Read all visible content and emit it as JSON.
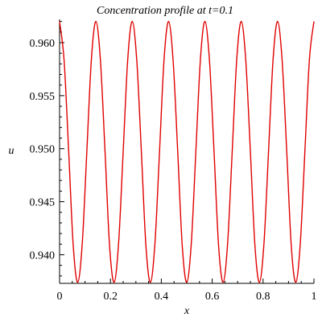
{
  "chart_data": {
    "type": "line",
    "title": "Concentration profile at t=0.1",
    "xlabel": "x",
    "ylabel": "u",
    "xlim": [
      0,
      1
    ],
    "ylim": [
      0.9373,
      0.9622
    ],
    "xticks": [
      "0",
      "0.2",
      "0.4",
      "0.6",
      "0.8",
      "1"
    ],
    "yticks": [
      "0.940",
      "0.945",
      "0.950",
      "0.955",
      "0.960"
    ],
    "grid": false,
    "legend": "none",
    "series": [
      {
        "color": "#e00000",
        "points": [
          [
            0.0,
            0.962
          ],
          [
            0.0179,
            0.9583
          ],
          [
            0.0357,
            0.9498
          ],
          [
            0.0536,
            0.9409
          ],
          [
            0.0714,
            0.9374
          ],
          [
            0.0893,
            0.9411
          ],
          [
            0.1071,
            0.9497
          ],
          [
            0.125,
            0.9584
          ],
          [
            0.1429,
            0.962
          ],
          [
            0.1607,
            0.9583
          ],
          [
            0.1786,
            0.9498
          ],
          [
            0.1964,
            0.9409
          ],
          [
            0.2143,
            0.9374
          ],
          [
            0.2321,
            0.9411
          ],
          [
            0.25,
            0.9497
          ],
          [
            0.2679,
            0.9584
          ],
          [
            0.2857,
            0.962
          ],
          [
            0.3036,
            0.9583
          ],
          [
            0.3214,
            0.9498
          ],
          [
            0.3393,
            0.9409
          ],
          [
            0.3571,
            0.9374
          ],
          [
            0.375,
            0.9411
          ],
          [
            0.3929,
            0.9497
          ],
          [
            0.4107,
            0.9584
          ],
          [
            0.4286,
            0.962
          ],
          [
            0.4464,
            0.9583
          ],
          [
            0.4643,
            0.9498
          ],
          [
            0.4821,
            0.9409
          ],
          [
            0.5,
            0.9374
          ],
          [
            0.5179,
            0.9411
          ],
          [
            0.5357,
            0.9497
          ],
          [
            0.5536,
            0.9584
          ],
          [
            0.5714,
            0.962
          ],
          [
            0.5893,
            0.9583
          ],
          [
            0.6071,
            0.9498
          ],
          [
            0.625,
            0.9409
          ],
          [
            0.6429,
            0.9374
          ],
          [
            0.6607,
            0.9411
          ],
          [
            0.6786,
            0.9497
          ],
          [
            0.6964,
            0.9584
          ],
          [
            0.7143,
            0.962
          ],
          [
            0.7321,
            0.9583
          ],
          [
            0.75,
            0.9498
          ],
          [
            0.7679,
            0.9409
          ],
          [
            0.7857,
            0.9374
          ],
          [
            0.8036,
            0.9411
          ],
          [
            0.8214,
            0.9497
          ],
          [
            0.8393,
            0.9584
          ],
          [
            0.8571,
            0.962
          ],
          [
            0.875,
            0.9583
          ],
          [
            0.8929,
            0.9498
          ],
          [
            0.9107,
            0.9409
          ],
          [
            0.9286,
            0.9374
          ],
          [
            0.9464,
            0.9411
          ],
          [
            0.9643,
            0.9497
          ],
          [
            0.9821,
            0.9584
          ],
          [
            1.0,
            0.962
          ]
        ]
      }
    ]
  }
}
